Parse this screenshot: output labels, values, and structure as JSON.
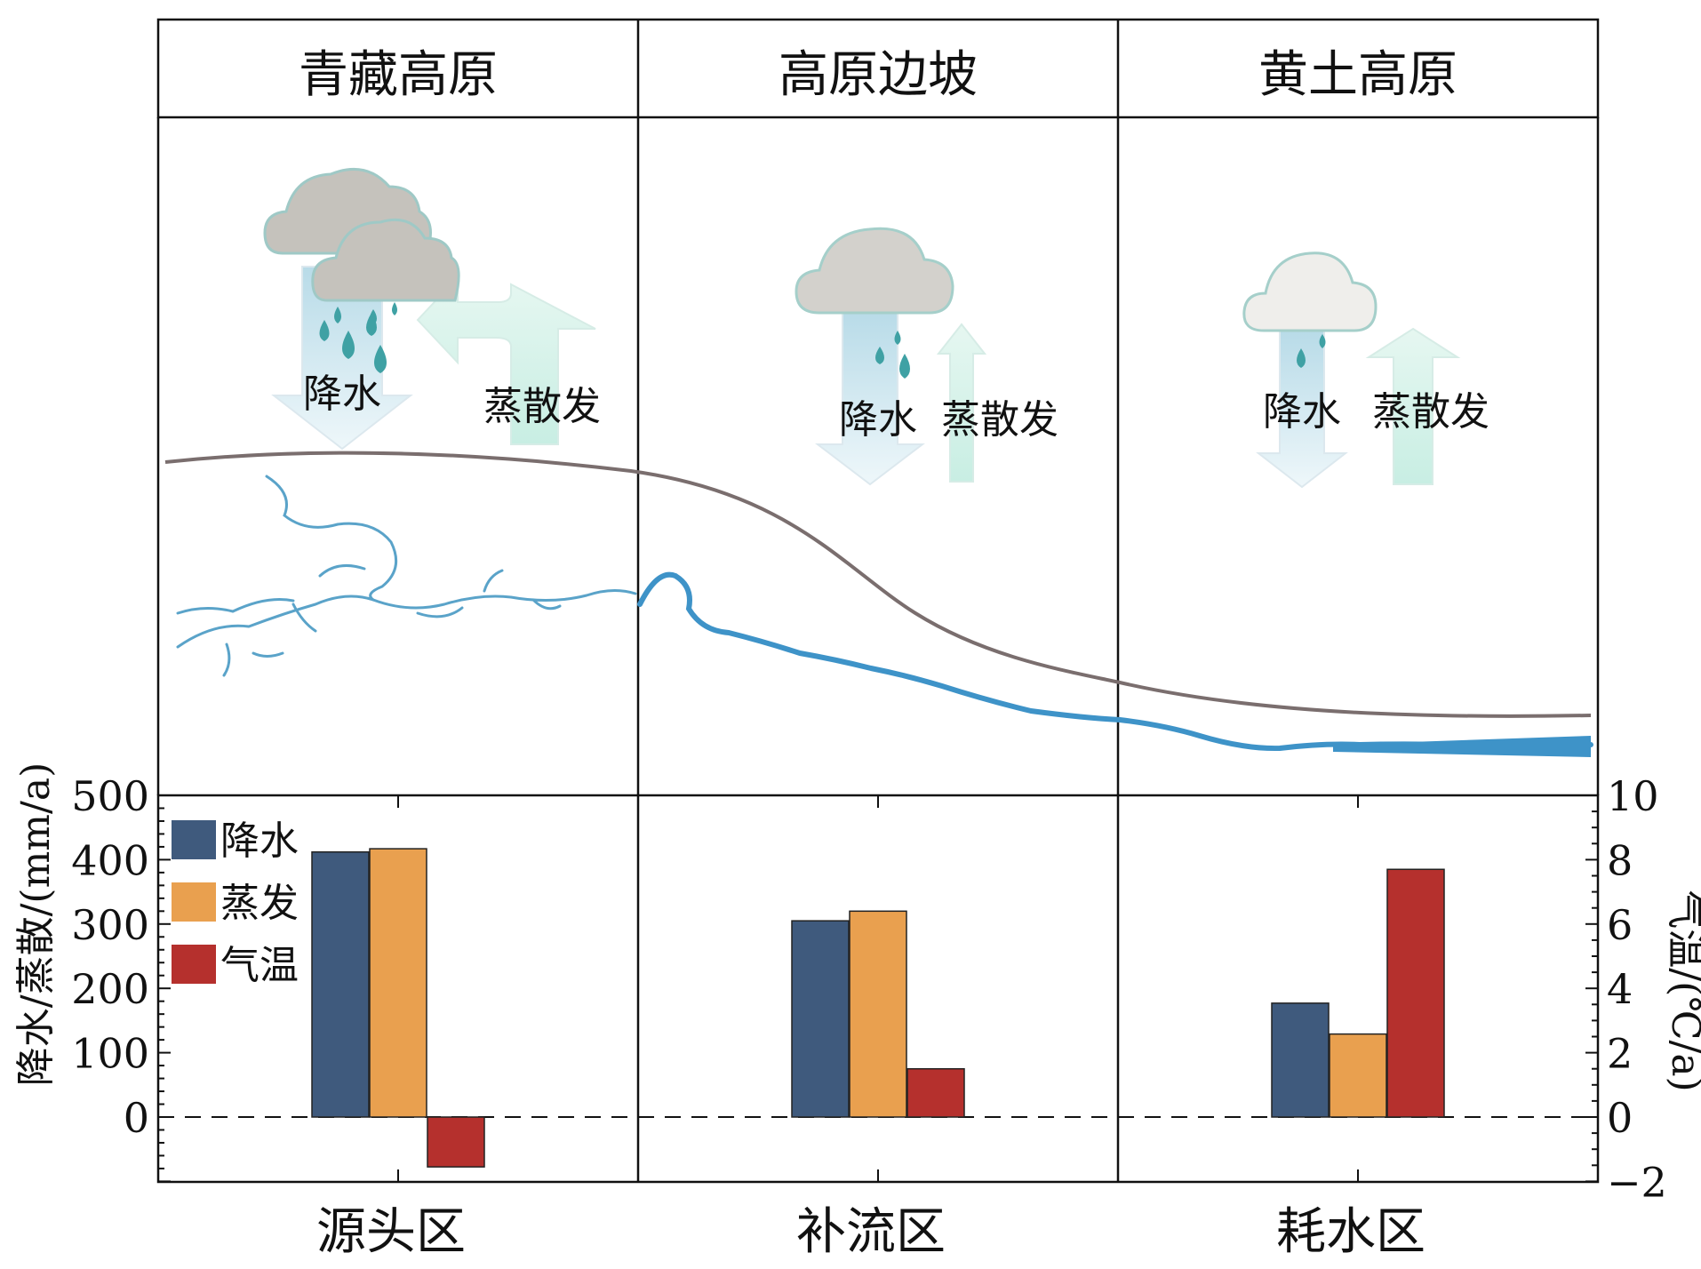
{
  "regions": [
    {
      "name": "青藏高原",
      "zone": "源头区",
      "precip_label": "降水",
      "evap_label": "蒸散发"
    },
    {
      "name": "高原边坡",
      "zone": "补流区",
      "precip_label": "降水",
      "evap_label": "蒸散发"
    },
    {
      "name": "黄土高原",
      "zone": "耗水区",
      "precip_label": "降水",
      "evap_label": "蒸散发"
    }
  ],
  "chart_data": {
    "type": "bar",
    "categories": [
      "源头区",
      "补流区",
      "耗水区"
    ],
    "series": [
      {
        "name": "降水",
        "axis": "left",
        "color": "#3f5a7d",
        "values": [
          412,
          305,
          177
        ]
      },
      {
        "name": "蒸发",
        "axis": "left",
        "color": "#e9a04f",
        "values": [
          417,
          320,
          129
        ]
      },
      {
        "name": "气温",
        "axis": "right",
        "color": "#b5302d",
        "values": [
          -1.55,
          1.5,
          7.7
        ]
      }
    ],
    "ylabel_left": "降水/蒸散/(mm/a)",
    "ylabel_right": "气温/(℃/a)",
    "ylim_left": [
      -100,
      500
    ],
    "ylim_right": [
      -2,
      10
    ],
    "yticks_left": [
      "500",
      "400",
      "300",
      "200",
      "100",
      "0"
    ],
    "yticks_right": [
      "10",
      "8",
      "6",
      "4",
      "2",
      "0",
      "−2"
    ],
    "zero_line": "dashed",
    "legend_position": "top-left"
  }
}
